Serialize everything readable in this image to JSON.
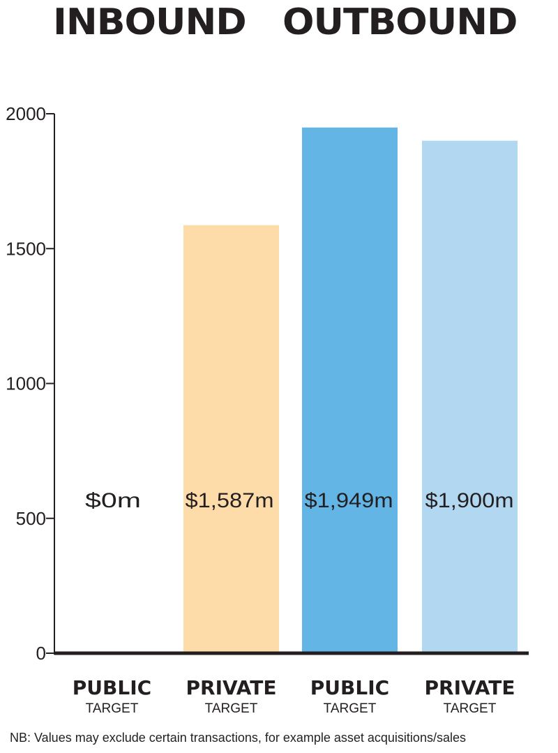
{
  "headings": {
    "inbound": "INBOUND",
    "outbound": "OUTBOUND"
  },
  "note": "NB: Values may exclude certain transactions, for example asset acquisitions/sales",
  "colors": {
    "text": "#231f20",
    "axis": "#231f20"
  },
  "chart_data": {
    "type": "bar",
    "group_titles": [
      "INBOUND",
      "OUTBOUND"
    ],
    "categories": [
      {
        "main": "PUBLIC",
        "sub": "TARGET",
        "group": "INBOUND"
      },
      {
        "main": "PRIVATE",
        "sub": "TARGET",
        "group": "INBOUND"
      },
      {
        "main": "PUBLIC",
        "sub": "TARGET",
        "group": "OUTBOUND"
      },
      {
        "main": "PRIVATE",
        "sub": "TARGET",
        "group": "OUTBOUND"
      }
    ],
    "values": [
      0,
      1587,
      1949,
      1900
    ],
    "data_labels": [
      "$0m",
      "$1,587m",
      "$1,949m",
      "$1,900m"
    ],
    "bar_colors": [
      "#fddcaa",
      "#fddcaa",
      "#63b5e5",
      "#b1d7f1"
    ],
    "yticks": [
      0,
      500,
      1000,
      1500,
      2000
    ],
    "ylim": [
      0,
      2000
    ],
    "grid": false,
    "xlabel": "",
    "ylabel": ""
  }
}
